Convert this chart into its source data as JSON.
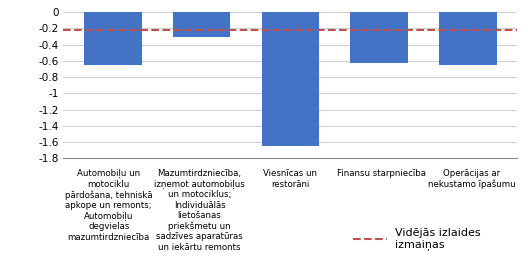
{
  "categories": [
    "Automobiļu un\nmotociklu\npārdošana, tehniskā\napkope un remonts;\nAutomobiļu\ndegvielas\nmazumtirdzniecība",
    "Mazumtirdzniecība,\nizņemot automobiļus\nun motociklus;\nIndividuālās\nlietošanas\npriekšmetu un\nsadzīves aparatūras\nun iekārtu remonts",
    "Viesnīcas un\nrestorāni",
    "Finansu starpniecība",
    "Operācijas ar\nnekustamo īpašumu"
  ],
  "values": [
    -0.65,
    -0.3,
    -1.65,
    -0.63,
    -0.65
  ],
  "bar_color": "#4472C4",
  "reference_line": -0.22,
  "reference_label": "Vidējās izlaides\nizmaiņas",
  "reference_color": "#C0504D",
  "ylim": [
    -1.8,
    0.05
  ],
  "yticks": [
    0,
    -0.2,
    -0.4,
    -0.6,
    -0.8,
    -1.0,
    -1.2,
    -1.4,
    -1.6,
    -1.8
  ],
  "ytick_labels": [
    "0",
    "-0.2",
    "-0.4",
    "-0.6",
    "-0.8",
    "-1",
    "-1.2",
    "-1.4",
    "-1.6",
    "-1.8"
  ],
  "background_color": "#FFFFFF",
  "grid_color": "#BBBBBB",
  "bar_width": 0.65
}
